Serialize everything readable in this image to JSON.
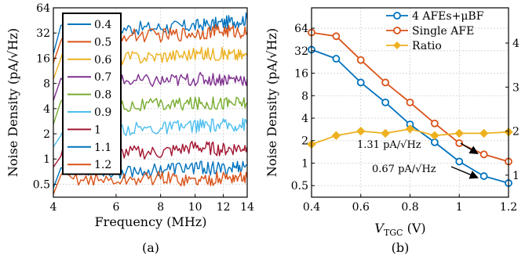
{
  "chart_data": [
    {
      "panel_label": "(a)",
      "type": "line",
      "xlabel": "Frequency (MHz)",
      "ylabel": "Noise Density (pA/√Hz)",
      "x_scale": "log",
      "y_scale": "log",
      "xlim": [
        4,
        14
      ],
      "ylim": [
        0.35,
        64
      ],
      "x_ticks": [
        4,
        6,
        8,
        10,
        12,
        14
      ],
      "y_ticks": [
        0.5,
        1,
        2,
        4,
        8,
        16,
        32,
        64
      ],
      "x_tick_labels": [
        "4",
        "6",
        "8",
        "10",
        "12",
        "14"
      ],
      "y_tick_labels": [
        "0.5",
        "1",
        "2",
        "4",
        "8",
        "16",
        "32",
        "64"
      ],
      "legend_position": "left",
      "series": [
        {
          "name": "0.4",
          "color": "#0072BD",
          "x": [
            4,
            4.2,
            6,
            8,
            10,
            12,
            14
          ],
          "y": [
            18,
            34,
            36,
            37,
            39,
            42,
            47
          ]
        },
        {
          "name": "0.5",
          "color": "#D95319",
          "x": [
            4,
            4.2,
            6,
            8,
            10,
            12,
            14
          ],
          "y": [
            14,
            30,
            30,
            30,
            32,
            34,
            33
          ]
        },
        {
          "name": "0.6",
          "color": "#EDB120",
          "x": [
            4,
            4.2,
            6,
            8,
            10,
            12,
            14
          ],
          "y": [
            9,
            17,
            16,
            17,
            18,
            18,
            17
          ]
        },
        {
          "name": "0.7",
          "color": "#7E2F8E",
          "x": [
            4,
            4.2,
            6,
            8,
            10,
            12,
            14
          ],
          "y": [
            5,
            9,
            8.5,
            8.5,
            9,
            9,
            9
          ]
        },
        {
          "name": "0.8",
          "color": "#77AC30",
          "x": [
            4,
            4.2,
            6,
            8,
            10,
            12,
            14
          ],
          "y": [
            2.6,
            4.4,
            4.3,
            4.4,
            4.6,
            4.7,
            4.7
          ]
        },
        {
          "name": "0.9",
          "color": "#4DBEEE",
          "x": [
            4,
            4.2,
            6,
            8,
            10,
            12,
            14
          ],
          "y": [
            1.4,
            2.3,
            2.3,
            2.3,
            2.5,
            2.5,
            2.6
          ]
        },
        {
          "name": "1",
          "color": "#A2142F",
          "x": [
            4,
            4.2,
            6,
            8,
            10,
            12,
            14
          ],
          "y": [
            0.8,
            1.2,
            1.2,
            1.2,
            1.4,
            1.3,
            1.4
          ]
        },
        {
          "name": "1.1",
          "color": "#0072BD",
          "x": [
            4,
            4.2,
            6,
            8,
            10,
            12,
            14
          ],
          "y": [
            0.45,
            0.8,
            0.7,
            0.75,
            0.8,
            0.75,
            0.85
          ]
        },
        {
          "name": "1.2",
          "color": "#D95319",
          "x": [
            4,
            4.2,
            6,
            8,
            10,
            12,
            14
          ],
          "y": [
            0.38,
            0.6,
            0.55,
            0.6,
            0.55,
            0.6,
            0.6
          ]
        }
      ]
    },
    {
      "panel_label": "(b)",
      "type": "line",
      "xlabel_main": "V",
      "xlabel_sub": "TGC",
      "xlabel_unit": " (V)",
      "ylabel": "Noise Density (pA/√Hz)",
      "y_scale": "log",
      "xlim": [
        0.4,
        1.2
      ],
      "ylim": [
        0.35,
        120
      ],
      "x_ticks": [
        0.4,
        0.6,
        0.8,
        1,
        1.2
      ],
      "x_tick_labels": [
        "0.4",
        "0.6",
        "0.8",
        "1",
        "1.2"
      ],
      "y_ticks": [
        0.5,
        1,
        2,
        4,
        8,
        16,
        32,
        64
      ],
      "y_tick_labels": [
        "0.5",
        "1",
        "2",
        "4",
        "8",
        "16",
        "32",
        "64"
      ],
      "y2_ticks": [
        1,
        2,
        3,
        4
      ],
      "y2_tick_labels": [
        "1",
        "2",
        "3",
        "4"
      ],
      "y2lim": [
        0.5,
        4.8
      ],
      "legend_position": "top-right",
      "series": [
        {
          "name": "4 AFEs+μBF",
          "color": "#0072BD",
          "marker": "circle",
          "axis": "left",
          "x": [
            0.4,
            0.5,
            0.6,
            0.7,
            0.8,
            0.9,
            1.0,
            1.1,
            1.2
          ],
          "y": [
            33,
            25,
            12,
            6.5,
            3.3,
            1.9,
            1.05,
            0.67,
            0.54
          ]
        },
        {
          "name": "Single AFE",
          "color": "#D95319",
          "marker": "circle",
          "axis": "left",
          "x": [
            0.4,
            0.5,
            0.6,
            0.7,
            0.8,
            0.9,
            1.0,
            1.1,
            1.2
          ],
          "y": [
            56,
            50,
            24,
            12,
            6.5,
            3.4,
            1.85,
            1.31,
            1.05
          ]
        },
        {
          "name": "Ratio",
          "color": "#EDB120",
          "marker": "diamond",
          "axis": "right",
          "x": [
            0.4,
            0.5,
            0.6,
            0.7,
            0.8,
            0.9,
            1.0,
            1.1,
            1.2
          ],
          "y": [
            1.7,
            1.9,
            2.0,
            1.95,
            2.05,
            1.9,
            1.95,
            1.95,
            1.98
          ]
        }
      ],
      "annotations": [
        "1.31 pA/√Hz",
        "0.67 pA/√Hz"
      ]
    }
  ]
}
